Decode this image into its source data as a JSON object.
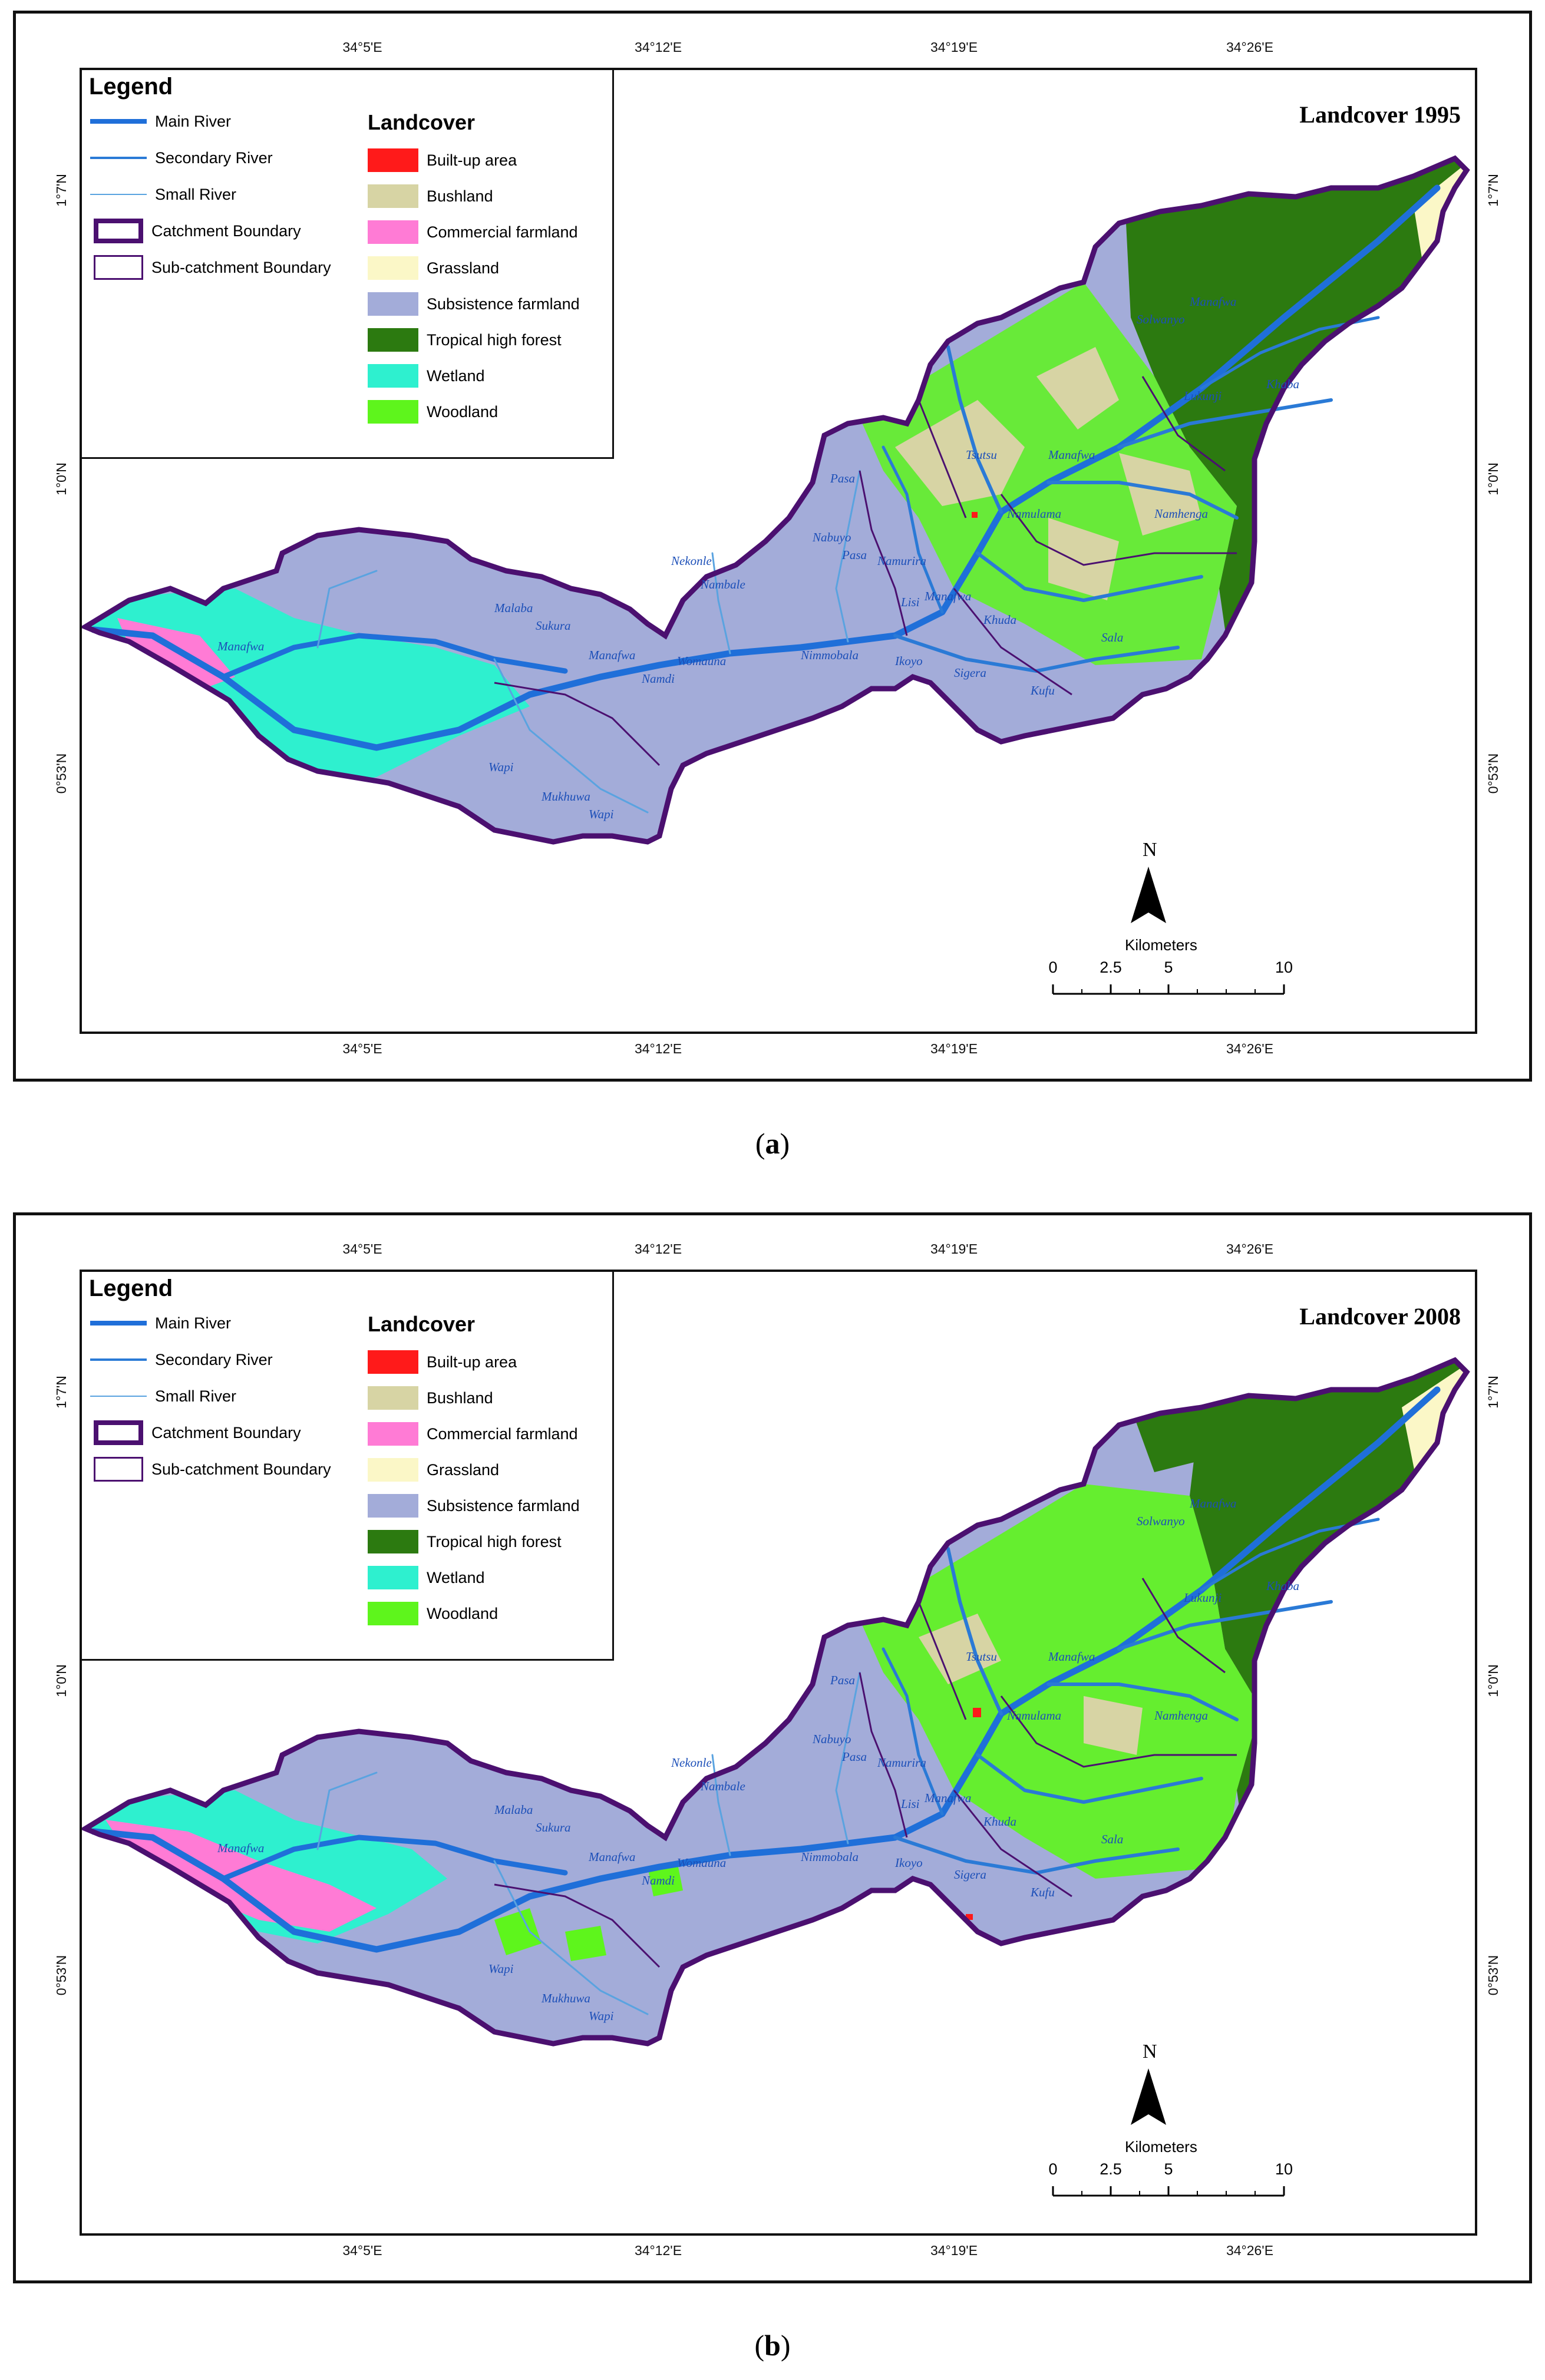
{
  "legend": {
    "title": "Legend",
    "rivers": [
      {
        "label": "Main River",
        "color": "#1f6fd9",
        "weight": "main"
      },
      {
        "label": "Secondary River",
        "color": "#2a7ad6",
        "weight": "secondary"
      },
      {
        "label": "Small River",
        "color": "#5aa3e0",
        "weight": "small"
      }
    ],
    "boundaries": [
      {
        "label": "Catchment Boundary",
        "color": "#4b1070",
        "weight": "thick"
      },
      {
        "label": "Sub-catchment Boundary",
        "color": "#4b1070",
        "weight": "thin"
      }
    ],
    "landcover_title": "Landcover",
    "landcover": [
      {
        "label": "Built-up area",
        "color": "#ff1a1a"
      },
      {
        "label": "Bushland",
        "color": "#d7d4a4"
      },
      {
        "label": "Commercial farmland",
        "color": "#ff7bd5"
      },
      {
        "label": "Grassland",
        "color": "#fbf7c7"
      },
      {
        "label": "Subsistence farmland",
        "color": "#a3acd9"
      },
      {
        "label": "Tropical high forest",
        "color": "#2c7a10"
      },
      {
        "label": "Wetland",
        "color": "#2ef0cf"
      },
      {
        "label": "Woodland",
        "color": "#5ef51c"
      }
    ]
  },
  "grid": {
    "longitudes": [
      "34°5'E",
      "34°12'E",
      "34°19'E",
      "34°26'E"
    ],
    "latitudes": [
      "1°7'N",
      "1°0'N",
      "0°53'N"
    ]
  },
  "north_arrow": {
    "label": "N"
  },
  "scale_bar": {
    "unit": "Kilometers",
    "ticks": [
      "0",
      "2.5",
      "5",
      "10"
    ]
  },
  "river_names": [
    "Malaba",
    "Sukura",
    "Manafwa",
    "Manafwa",
    "Wapi",
    "Mukhuwa",
    "Wapi",
    "Namdi",
    "Womauna",
    "Nambale",
    "Nekonle",
    "Pasa",
    "Nabuyo",
    "Pasa",
    "Namurira",
    "Lisi",
    "Manafwa",
    "Khuda",
    "Nimmobala",
    "Ikoyo",
    "Sigera",
    "Kufu",
    "Sala",
    "Tsutsu",
    "Namulama",
    "Manafwa",
    "Namhenga",
    "Solwanyo",
    "Manafwa",
    "Lukunji",
    "Khaba"
  ],
  "panels": [
    {
      "id": "a",
      "map_title": "Landcover 1995",
      "caption_prefix": "(",
      "caption_letter": "a",
      "caption_suffix": ")"
    },
    {
      "id": "b",
      "map_title": "Landcover 2008",
      "caption_prefix": "(",
      "caption_letter": "b",
      "caption_suffix": ")"
    }
  ]
}
